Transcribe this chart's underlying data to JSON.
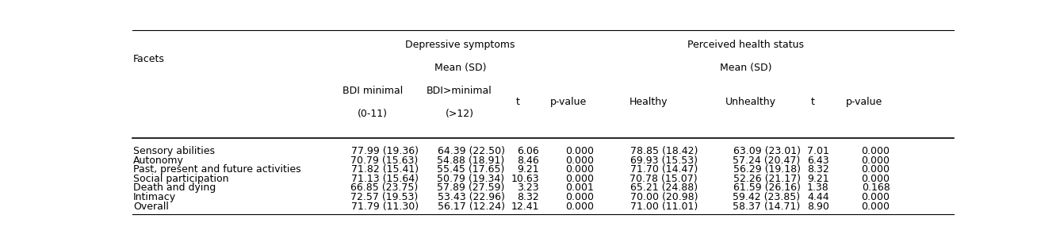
{
  "headers": [
    "Facets",
    "BDI minimal\n(0-11)",
    "BDI>minimal\n(>12)",
    "t",
    "p-value",
    "Healthy",
    "Unhealthy",
    "t",
    "p-value"
  ],
  "rows": [
    [
      "Sensory abilities",
      "77.99 (19.36)",
      "64.39 (22.50)",
      "6.06",
      "0.000",
      "78.85 (18.42)",
      "63.09 (23.01)",
      "7.01",
      "0.000"
    ],
    [
      "Autonomy",
      "70.79 (15.63)",
      "54.88 (18.91)",
      "8.46",
      "0.000",
      "69.93 (15.53)",
      "57.24 (20.47)",
      "6.43",
      "0.000"
    ],
    [
      "Past, present and future activities",
      "71.82 (15.41)",
      "55.45 (17.65)",
      "9.21",
      "0.000",
      "71.70 (14.47)",
      "56.29 (19.18)",
      "8.32",
      "0.000"
    ],
    [
      "Social participation",
      "71.13 (15.64)",
      "50.79 (19.34)",
      "10.63",
      "0.000",
      "70.78 (15.07)",
      "52.26 (21.17)",
      "9.21",
      "0.000"
    ],
    [
      "Death and dying",
      "66.85 (23.75)",
      "57.89 (27.59)",
      "3.23",
      "0.001",
      "65.21 (24.88)",
      "61.59 (26.16)",
      "1.38",
      "0.168"
    ],
    [
      "Intimacy",
      "72.57 (19.53)",
      "53.43 (22.96)",
      "8.32",
      "0.000",
      "70.00 (20.98)",
      "59.42 (23.85)",
      "4.44",
      "0.000"
    ],
    [
      "Overall",
      "71.79 (11.30)",
      "56.17 (12.24)",
      "12.41",
      "0.000",
      "71.00 (11.01)",
      "58.37 (14.71)",
      "8.90",
      "0.000"
    ]
  ],
  "background_color": "#ffffff",
  "text_color": "#000000",
  "font_size": 9.0
}
